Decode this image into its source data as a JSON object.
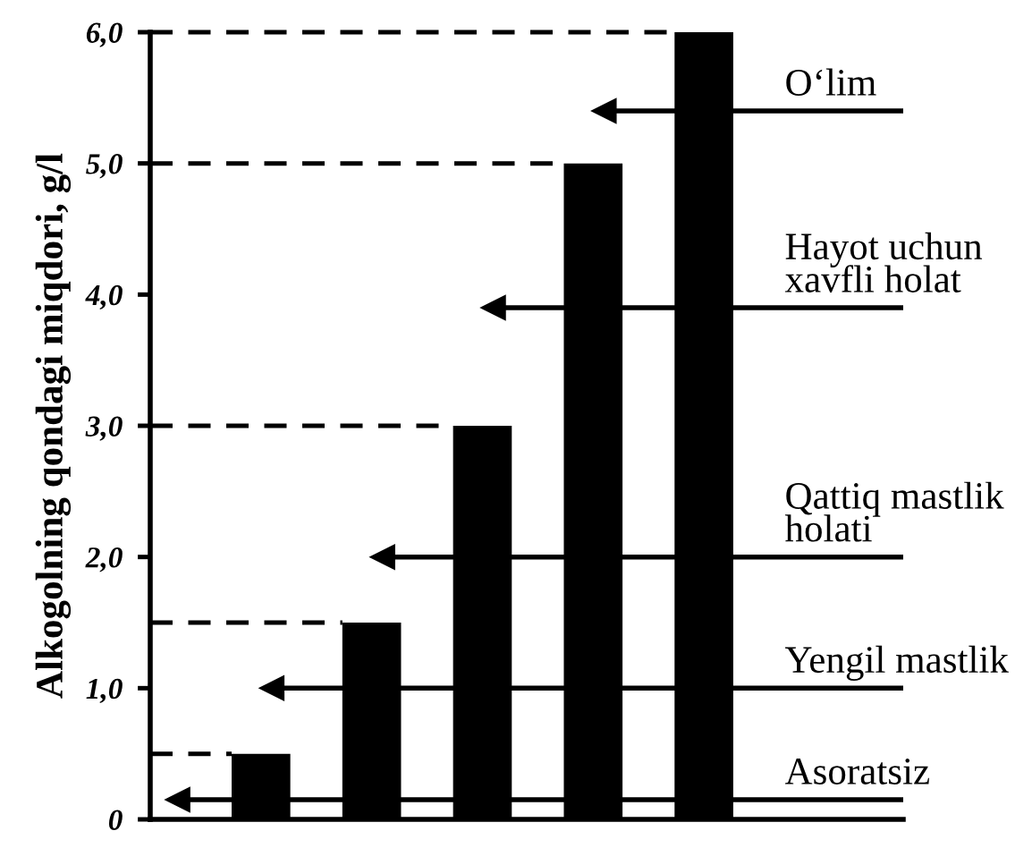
{
  "chart_data": {
    "type": "bar",
    "ylabel": "Alkogolning qondagi miqdori, g/l",
    "categories": [
      null,
      null,
      null,
      null,
      null
    ],
    "values": [
      0.5,
      1.5,
      3.0,
      5.0,
      6.0
    ],
    "color": "#000000",
    "ylim": [
      0,
      6.0
    ],
    "yticks": [
      0,
      {
        "value": 1.0,
        "label": "1,0"
      },
      {
        "value": 2.0,
        "label": "2,0"
      },
      {
        "value": 3.0,
        "label": "3,0"
      },
      {
        "value": 4.0,
        "label": "4,0"
      },
      {
        "value": 5.0,
        "label": "5,0"
      },
      {
        "value": 6.0,
        "label": "6,0"
      }
    ],
    "tick_labels": "y",
    "ref_lines": [
      {
        "axis": "y",
        "value": 0.5,
        "line_style": "dashed",
        "color": "#000000"
      },
      {
        "axis": "y",
        "value": 1.5,
        "line_style": "dashed",
        "color": "#000000"
      },
      {
        "axis": "y",
        "value": 3.0,
        "line_style": "dashed",
        "color": "#000000"
      },
      {
        "axis": "y",
        "value": 5.0,
        "line_style": "dashed",
        "color": "#000000"
      },
      {
        "axis": "y",
        "value": 6.0,
        "line_style": "dashed",
        "color": "#000000"
      },
      {
        "axis": "y",
        "value": 5.4,
        "label": "O‘lim",
        "line_style": "solid",
        "color": "#000000"
      },
      {
        "axis": "y",
        "value": 3.9,
        "label": "Hayot uchun\nxavfli holat",
        "line_style": "solid",
        "color": "#000000"
      },
      {
        "axis": "y",
        "value": 2.0,
        "label": "Qattiq mastlik\nholati",
        "line_style": "solid",
        "color": "#000000"
      },
      {
        "axis": "y",
        "value": 1.0,
        "label": "Yengil mastlik",
        "line_style": "solid",
        "color": "#000000"
      },
      {
        "axis": "y",
        "value": 0.15,
        "label": "Asoratsiz",
        "line_style": "solid",
        "color": "#000000"
      }
    ]
  }
}
